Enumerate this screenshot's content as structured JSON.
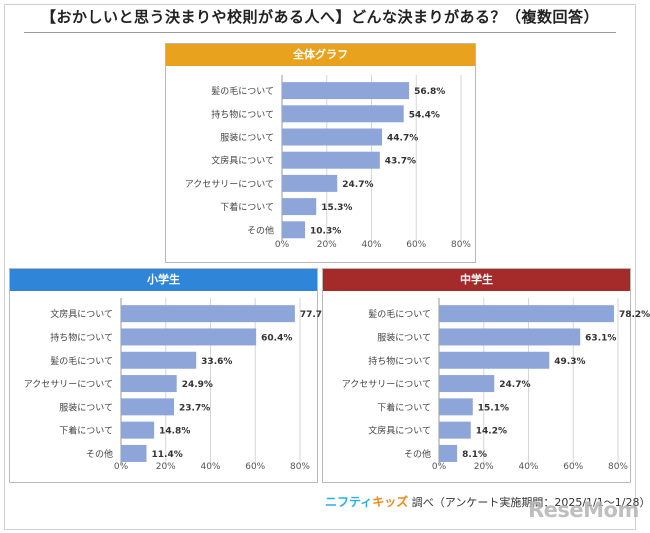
{
  "title": "【おかしいと思う決まりや校則がある人へ】どんな決まりがある？（複数回答）",
  "colors": {
    "overall": "#e8a21d",
    "elementary": "#2f86d8",
    "junior": "#a52a2a",
    "bar": "#8ea5d9",
    "grid": "#d6d6d6"
  },
  "footer": {
    "brand1": "ニフティ",
    "brand2": "キッズ",
    "text": "調べ（アンケート実施期間：2025/1/1～1/28）"
  },
  "logo": "ReseMom",
  "chart_data": [
    {
      "type": "bar",
      "orientation": "horizontal",
      "title": "全体グラフ",
      "categories": [
        "髪の毛について",
        "持ち物について",
        "服装について",
        "文房具について",
        "アクセサリーについて",
        "下着について",
        "その他"
      ],
      "values": [
        56.8,
        54.4,
        44.7,
        43.7,
        24.7,
        15.3,
        10.3
      ],
      "value_labels": [
        "56.8%",
        "54.4%",
        "44.7%",
        "43.7%",
        "24.7%",
        "15.3%",
        "10.3%"
      ],
      "xlim": [
        0,
        80
      ],
      "ticks": [
        "0%",
        "20%",
        "40%",
        "60%",
        "80%"
      ],
      "grid": true
    },
    {
      "type": "bar",
      "orientation": "horizontal",
      "title": "小学生",
      "categories": [
        "文房具について",
        "持ち物について",
        "髪の毛について",
        "アクセサリーについて",
        "服装について",
        "下着について",
        "その他"
      ],
      "values": [
        77.7,
        60.4,
        33.6,
        24.9,
        23.7,
        14.8,
        11.4
      ],
      "value_labels": [
        "77.7%",
        "60.4%",
        "33.6%",
        "24.9%",
        "23.7%",
        "14.8%",
        "11.4%"
      ],
      "xlim": [
        0,
        80
      ],
      "ticks": [
        "0%",
        "20%",
        "40%",
        "60%",
        "80%"
      ],
      "grid": true
    },
    {
      "type": "bar",
      "orientation": "horizontal",
      "title": "中学生",
      "categories": [
        "髪の毛について",
        "服装について",
        "持ち物について",
        "アクセサリーについて",
        "下着について",
        "文房具について",
        "その他"
      ],
      "values": [
        78.2,
        63.1,
        49.3,
        24.7,
        15.1,
        14.2,
        8.1
      ],
      "value_labels": [
        "78.2%",
        "63.1%",
        "49.3%",
        "24.7%",
        "15.1%",
        "14.2%",
        "8.1%"
      ],
      "xlim": [
        0,
        80
      ],
      "ticks": [
        "0%",
        "20%",
        "40%",
        "60%",
        "80%"
      ],
      "grid": true
    }
  ]
}
